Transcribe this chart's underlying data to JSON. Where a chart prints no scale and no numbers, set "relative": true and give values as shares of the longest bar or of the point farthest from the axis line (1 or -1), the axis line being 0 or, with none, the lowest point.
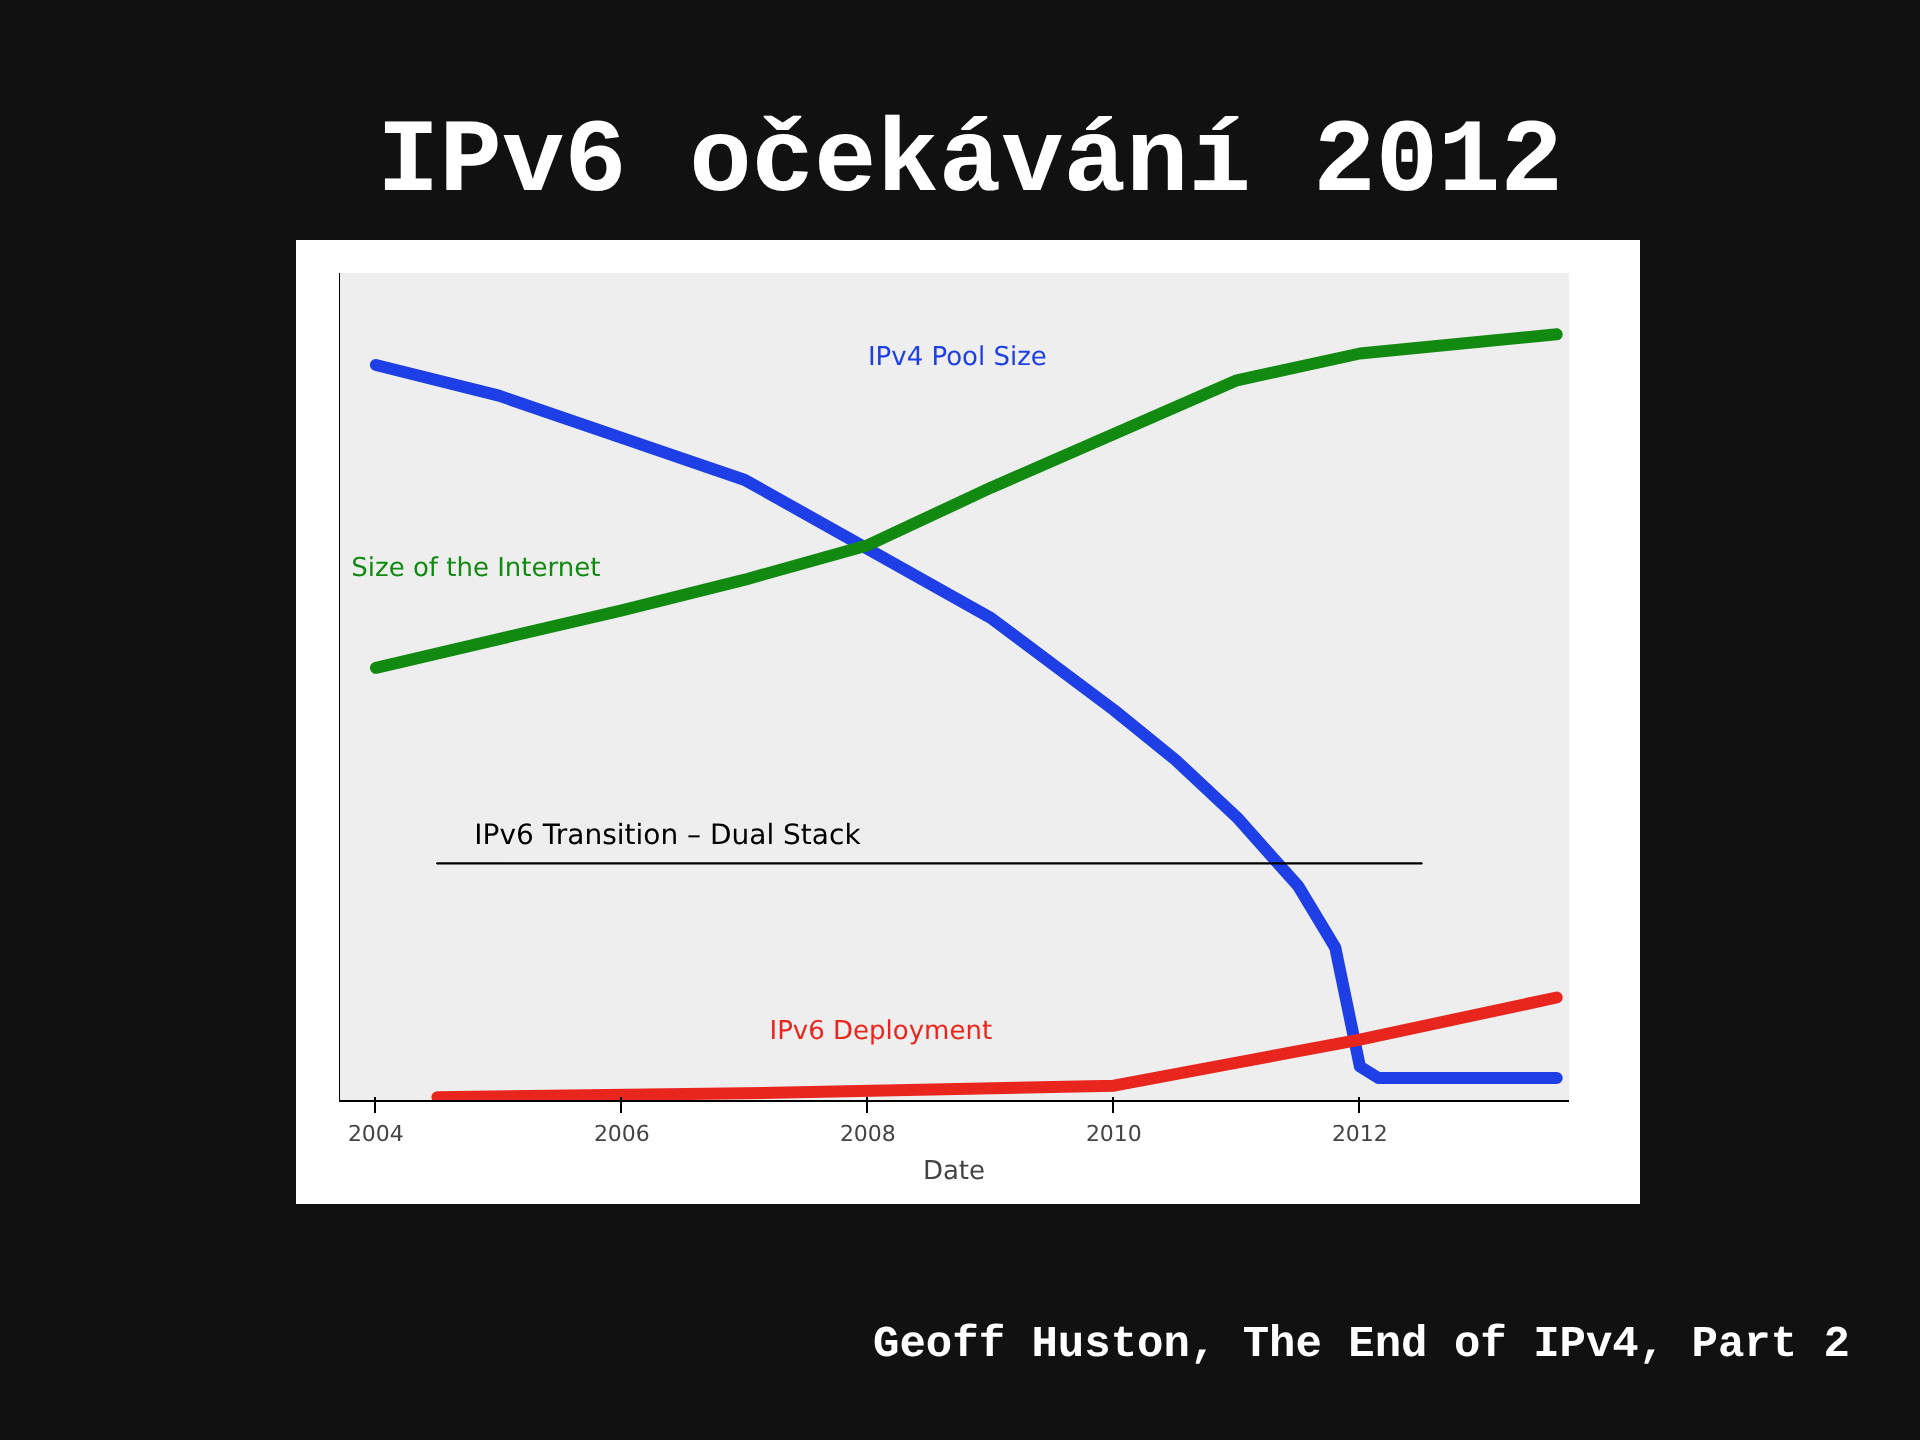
{
  "chart_data": {
    "type": "line",
    "title": "IPv6 očekávání 2012",
    "xlabel": "Date",
    "relative": true,
    "xlim": [
      2003.7,
      2013.7
    ],
    "xticks": [
      2004,
      2006,
      2008,
      2010,
      2012
    ],
    "grid": false,
    "marker": "none",
    "line_style": "solid",
    "series": [
      {
        "name": "IPv4 Pool Size",
        "color": "#1f3fe6",
        "x": [
          2004,
          2005,
          2006,
          2007,
          2008,
          2009,
          2010,
          2010.5,
          2011,
          2011.5,
          2011.8,
          2012,
          2012.15,
          2013.6
        ],
        "values": [
          0.96,
          0.92,
          0.865,
          0.81,
          0.72,
          0.63,
          0.51,
          0.445,
          0.37,
          0.28,
          0.2,
          0.045,
          0.03,
          0.03
        ]
      },
      {
        "name": "Size of the Internet",
        "color": "#128a12",
        "x": [
          2004,
          2006,
          2007,
          2008,
          2009,
          2010,
          2011,
          2012,
          2013.6
        ],
        "values": [
          0.565,
          0.64,
          0.68,
          0.725,
          0.8,
          0.87,
          0.94,
          0.975,
          1
        ]
      },
      {
        "name": "IPv6 Deployment",
        "color": "#e8261e",
        "x": [
          2004.5,
          2007,
          2010,
          2011,
          2012,
          2013.6
        ],
        "values": [
          0.005,
          0.01,
          0.02,
          0.05,
          0.08,
          0.135
        ]
      },
      {
        "color": "#000000",
        "x": [
          2004.5,
          2012.5
        ],
        "values": [
          0.31,
          0.31
        ]
      }
    ],
    "annotations": [
      "IPv6 Transition – Dual Stack",
      "Geoff Huston, The End of IPv4, Part 2"
    ]
  }
}
